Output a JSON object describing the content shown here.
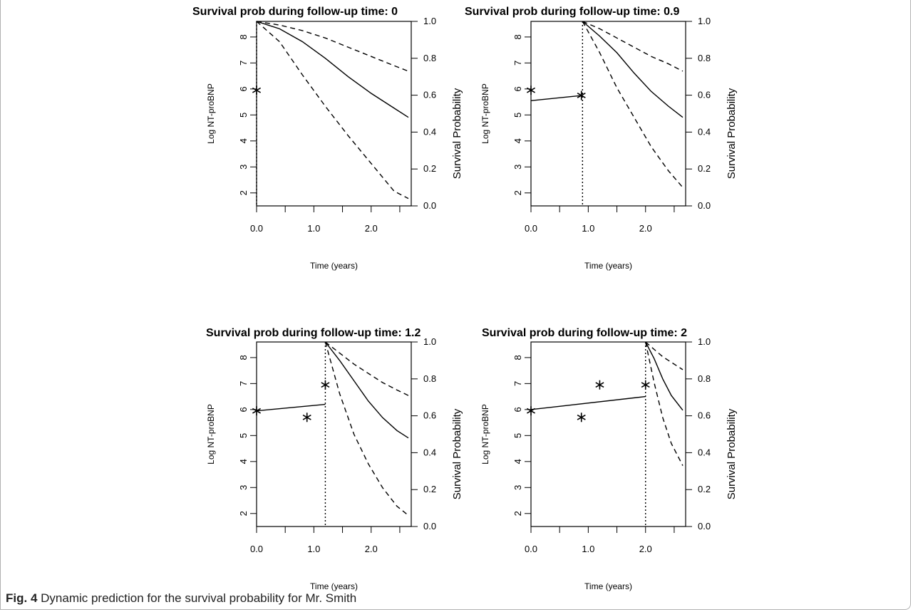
{
  "caption": {
    "label": "Fig. 4",
    "text": " Dynamic prediction for the survival probability for Mr. Smith"
  },
  "chart_data": [
    {
      "type": "line",
      "title": "Survival prob during follow-up time: 0",
      "xlabel": "Time (years)",
      "ylabel": "Log NT-proBNP",
      "ylabel_right": "Survival Probability",
      "xlim": [
        0,
        2.7
      ],
      "ylim": [
        1.5,
        8.6
      ],
      "ylim_right": [
        0,
        1
      ],
      "x_ticks": [
        "0.0",
        "1.0",
        "2.0"
      ],
      "y_ticks": [
        "2",
        "3",
        "4",
        "5",
        "6",
        "7",
        "8"
      ],
      "y_ticks_right": [
        "0.0",
        "0.2",
        "0.4",
        "0.6",
        "0.8",
        "1.0"
      ],
      "follow_up_time": 0,
      "observations": [
        {
          "x": 0,
          "y": 5.95
        }
      ],
      "longitudinal_fit": [],
      "survival": {
        "x": [
          0,
          0.4,
          0.8,
          1.2,
          1.6,
          2.0,
          2.4,
          2.65
        ],
        "mean": [
          1.0,
          0.96,
          0.89,
          0.8,
          0.7,
          0.61,
          0.53,
          0.48
        ],
        "upper": [
          1.0,
          0.98,
          0.95,
          0.91,
          0.86,
          0.81,
          0.76,
          0.73
        ],
        "lower": [
          1.0,
          0.89,
          0.71,
          0.54,
          0.38,
          0.23,
          0.08,
          0.04
        ]
      }
    },
    {
      "type": "line",
      "title": "Survival prob during follow-up time: 0.9",
      "xlabel": "Time (years)",
      "ylabel": "Log NT-proBNP",
      "ylabel_right": "Survival Probability",
      "xlim": [
        0,
        2.7
      ],
      "ylim": [
        1.5,
        8.6
      ],
      "ylim_right": [
        0,
        1
      ],
      "x_ticks": [
        "0.0",
        "1.0",
        "2.0"
      ],
      "y_ticks": [
        "2",
        "3",
        "4",
        "5",
        "6",
        "7",
        "8"
      ],
      "y_ticks_right": [
        "0.0",
        "0.2",
        "0.4",
        "0.6",
        "0.8",
        "1.0"
      ],
      "follow_up_time": 0.9,
      "observations": [
        {
          "x": 0,
          "y": 5.95
        },
        {
          "x": 0.88,
          "y": 5.75
        }
      ],
      "longitudinal_fit": [
        {
          "x": 0,
          "y": 5.55
        },
        {
          "x": 0.9,
          "y": 5.75
        }
      ],
      "survival": {
        "x": [
          0.9,
          1.2,
          1.5,
          1.8,
          2.1,
          2.4,
          2.65
        ],
        "mean": [
          1.0,
          0.92,
          0.83,
          0.72,
          0.62,
          0.54,
          0.48
        ],
        "upper": [
          1.0,
          0.96,
          0.91,
          0.86,
          0.81,
          0.77,
          0.73
        ],
        "lower": [
          1.0,
          0.83,
          0.64,
          0.48,
          0.32,
          0.19,
          0.1
        ]
      }
    },
    {
      "type": "line",
      "title": "Survival prob during follow-up time: 1.2",
      "xlabel": "Time (years)",
      "ylabel": "Log NT-proBNP",
      "ylabel_right": "Survival Probability",
      "xlim": [
        0,
        2.7
      ],
      "ylim": [
        1.5,
        8.6
      ],
      "ylim_right": [
        0,
        1
      ],
      "x_ticks": [
        "0.0",
        "1.0",
        "2.0"
      ],
      "y_ticks": [
        "2",
        "3",
        "4",
        "5",
        "6",
        "7",
        "8"
      ],
      "y_ticks_right": [
        "0.0",
        "0.2",
        "0.4",
        "0.6",
        "0.8",
        "1.0"
      ],
      "follow_up_time": 1.2,
      "observations": [
        {
          "x": 0,
          "y": 5.95
        },
        {
          "x": 0.88,
          "y": 5.7
        },
        {
          "x": 1.2,
          "y": 6.95
        }
      ],
      "longitudinal_fit": [
        {
          "x": 0,
          "y": 5.95
        },
        {
          "x": 1.2,
          "y": 6.2
        }
      ],
      "survival": {
        "x": [
          1.2,
          1.45,
          1.7,
          1.95,
          2.2,
          2.45,
          2.65
        ],
        "mean": [
          1.0,
          0.9,
          0.79,
          0.68,
          0.59,
          0.52,
          0.48
        ],
        "upper": [
          1.0,
          0.94,
          0.88,
          0.83,
          0.78,
          0.74,
          0.71
        ],
        "lower": [
          1.0,
          0.72,
          0.5,
          0.34,
          0.21,
          0.11,
          0.06
        ]
      }
    },
    {
      "type": "line",
      "title": "Survival prob during follow-up time: 2",
      "xlabel": "Time (years)",
      "ylabel": "Log NT-proBNP",
      "ylabel_right": "Survival Probability",
      "xlim": [
        0,
        2.7
      ],
      "ylim": [
        1.5,
        8.6
      ],
      "ylim_right": [
        0,
        1
      ],
      "x_ticks": [
        "0.0",
        "1.0",
        "2.0"
      ],
      "y_ticks": [
        "2",
        "3",
        "4",
        "5",
        "6",
        "7",
        "8"
      ],
      "y_ticks_right": [
        "0.0",
        "0.2",
        "0.4",
        "0.6",
        "0.8",
        "1.0"
      ],
      "follow_up_time": 2,
      "observations": [
        {
          "x": 0,
          "y": 5.95
        },
        {
          "x": 0.88,
          "y": 5.7
        },
        {
          "x": 1.2,
          "y": 6.95
        },
        {
          "x": 2.0,
          "y": 6.95
        }
      ],
      "longitudinal_fit": [
        {
          "x": 0,
          "y": 6.0
        },
        {
          "x": 2.0,
          "y": 6.5
        }
      ],
      "survival": {
        "x": [
          2.0,
          2.15,
          2.3,
          2.45,
          2.65
        ],
        "mean": [
          1.0,
          0.91,
          0.8,
          0.71,
          0.63
        ],
        "upper": [
          1.0,
          0.96,
          0.92,
          0.89,
          0.85
        ],
        "lower": [
          1.0,
          0.78,
          0.59,
          0.45,
          0.33
        ]
      }
    }
  ]
}
